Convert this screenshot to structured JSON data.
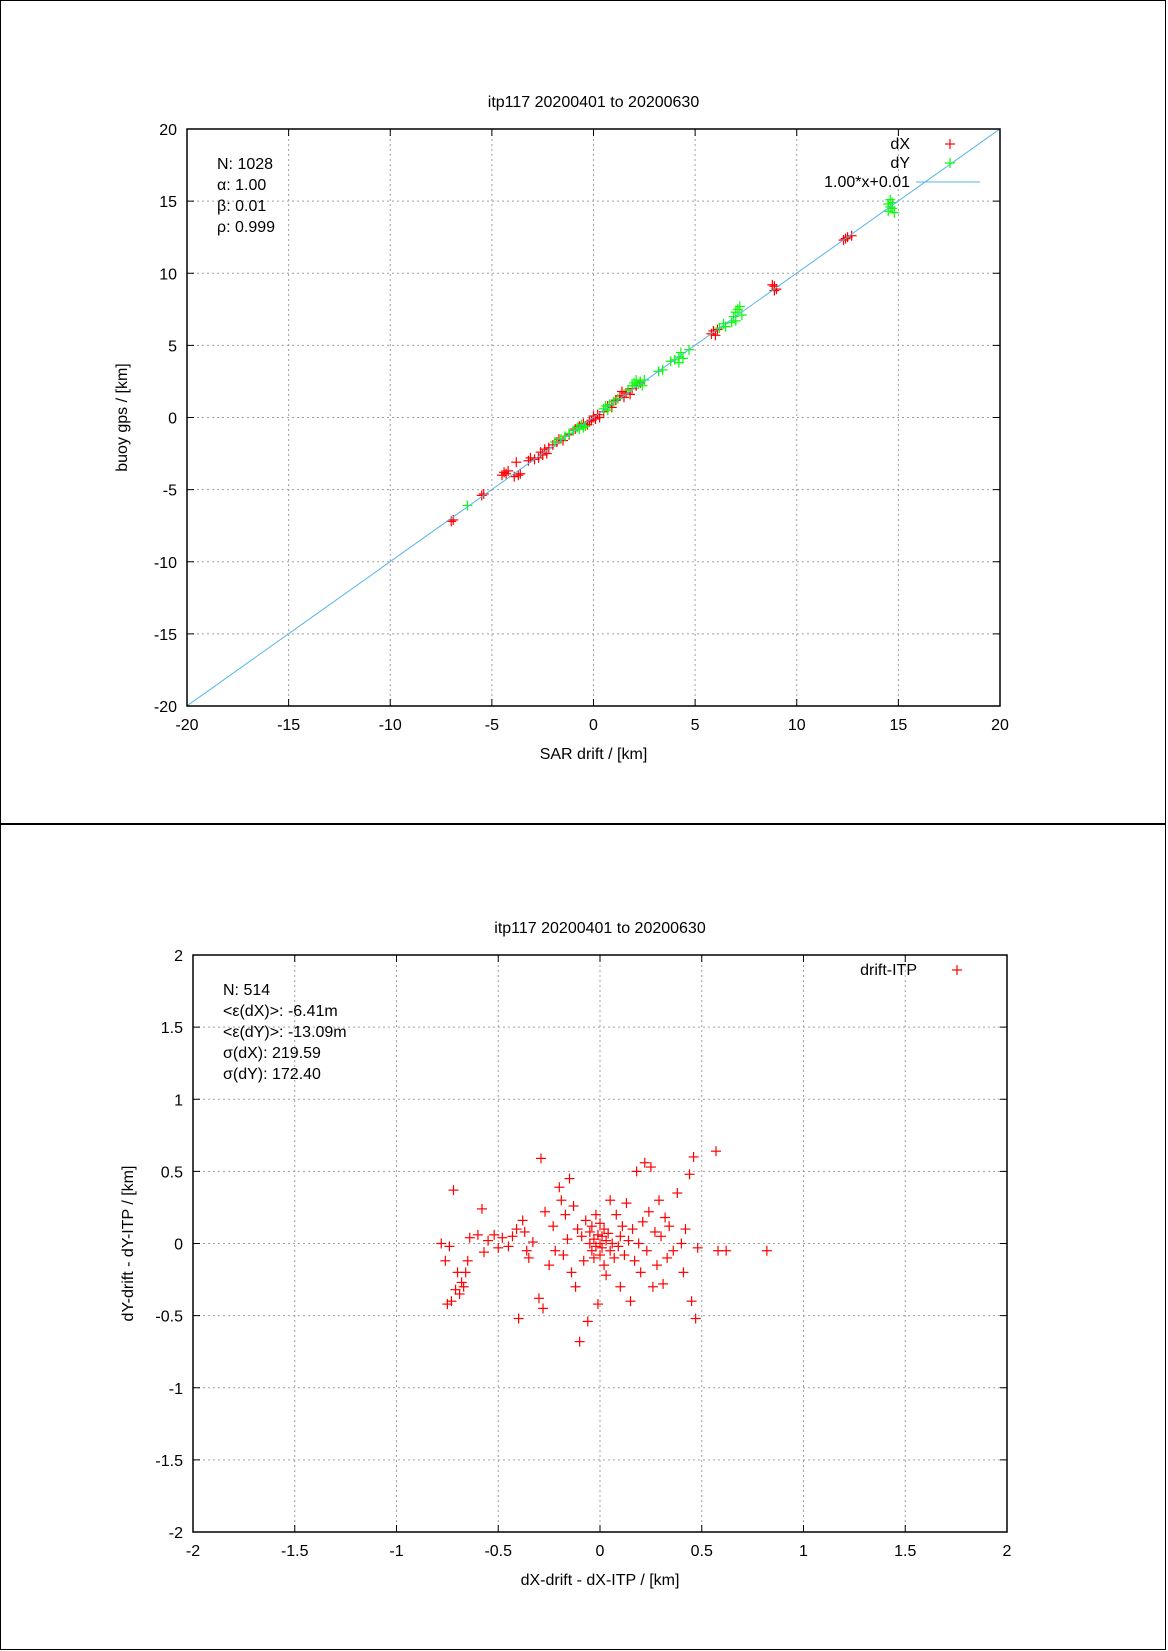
{
  "chart_data": [
    {
      "type": "scatter",
      "title": "itp117 20200401 to 20200630",
      "xlabel": "SAR drift / [km]",
      "ylabel": "buoy gps / [km]",
      "xlim": [
        -20,
        20
      ],
      "ylim": [
        -20,
        20
      ],
      "xticks": [
        "-20",
        "-15",
        "-10",
        "-5",
        "0",
        "5",
        "10",
        "15",
        "20"
      ],
      "yticks": [
        "-20",
        "-15",
        "-10",
        "-5",
        "0",
        "5",
        "10",
        "15",
        "20"
      ],
      "xtick_values": [
        -20,
        -15,
        -10,
        -5,
        0,
        5,
        10,
        15,
        20
      ],
      "ytick_values": [
        -20,
        -15,
        -10,
        -5,
        0,
        5,
        10,
        15,
        20
      ],
      "grid": true,
      "legend_position": "top-right",
      "stats": [
        "N: 1028",
        "α: 1.00",
        "β: 0.01",
        "ρ: 0.999"
      ],
      "series": [
        {
          "name": "dX",
          "marker": "plus",
          "color": "#ff0000",
          "points": [
            [
              -6.9,
              -7.1
            ],
            [
              -7.0,
              -7.2
            ],
            [
              -5.4,
              -5.3
            ],
            [
              -5.5,
              -5.4
            ],
            [
              -4.4,
              -3.8
            ],
            [
              -4.3,
              -3.9
            ],
            [
              -4.5,
              -4.0
            ],
            [
              -4.2,
              -3.7
            ],
            [
              -3.8,
              -3.1
            ],
            [
              -3.7,
              -4.0
            ],
            [
              -3.6,
              -3.9
            ],
            [
              -3.9,
              -4.1
            ],
            [
              -3.2,
              -3.0
            ],
            [
              -3.1,
              -2.8
            ],
            [
              -2.9,
              -2.9
            ],
            [
              -2.6,
              -2.4
            ],
            [
              -2.5,
              -2.6
            ],
            [
              -2.4,
              -2.2
            ],
            [
              -2.3,
              -2.5
            ],
            [
              -2.7,
              -2.8
            ],
            [
              -2.2,
              -2.1
            ],
            [
              -2.0,
              -1.9
            ],
            [
              -1.8,
              -1.7
            ],
            [
              -1.7,
              -1.5
            ],
            [
              -1.5,
              -1.6
            ],
            [
              -1.2,
              -1.2
            ],
            [
              -0.9,
              -0.8
            ],
            [
              -0.7,
              -0.6
            ],
            [
              -0.5,
              -0.4
            ],
            [
              -0.3,
              -0.5
            ],
            [
              -0.1,
              -0.2
            ],
            [
              0.0,
              0.1
            ],
            [
              0.1,
              -0.1
            ],
            [
              0.2,
              0.2
            ],
            [
              0.3,
              0.0
            ],
            [
              -0.2,
              -0.3
            ],
            [
              0.5,
              0.4
            ],
            [
              0.7,
              0.8
            ],
            [
              0.9,
              0.7
            ],
            [
              1.1,
              1.2
            ],
            [
              1.3,
              1.5
            ],
            [
              1.5,
              1.4
            ],
            [
              1.6,
              1.7
            ],
            [
              1.8,
              1.6
            ],
            [
              1.9,
              2.0
            ],
            [
              2.1,
              2.2
            ],
            [
              2.3,
              2.4
            ],
            [
              1.4,
              1.8
            ],
            [
              5.8,
              5.8
            ],
            [
              5.9,
              6.0
            ],
            [
              6.0,
              5.7
            ],
            [
              6.1,
              6.1
            ],
            [
              8.9,
              9.1
            ],
            [
              9.0,
              8.9
            ],
            [
              8.8,
              9.2
            ],
            [
              8.9,
              8.8
            ],
            [
              12.3,
              12.3
            ],
            [
              12.5,
              12.5
            ],
            [
              12.7,
              12.6
            ],
            [
              12.4,
              12.4
            ]
          ]
        },
        {
          "name": "dY",
          "marker": "plus",
          "color": "#00ff00",
          "points": [
            [
              -6.2,
              -6.1
            ],
            [
              -1.9,
              -1.7
            ],
            [
              -1.6,
              -1.5
            ],
            [
              -1.4,
              -1.3
            ],
            [
              -1.2,
              -1.1
            ],
            [
              -1.0,
              -0.9
            ],
            [
              -0.8,
              -0.7
            ],
            [
              -0.6,
              -0.5
            ],
            [
              -0.5,
              -0.7
            ],
            [
              -0.4,
              -0.6
            ],
            [
              -0.7,
              -0.8
            ],
            [
              0.5,
              0.6
            ],
            [
              0.6,
              0.8
            ],
            [
              0.7,
              0.5
            ],
            [
              0.8,
              0.9
            ],
            [
              1.0,
              1.1
            ],
            [
              1.2,
              1.3
            ],
            [
              1.7,
              1.9
            ],
            [
              1.9,
              2.2
            ],
            [
              2.0,
              2.4
            ],
            [
              2.1,
              2.6
            ],
            [
              2.2,
              2.3
            ],
            [
              2.3,
              2.5
            ],
            [
              2.5,
              2.6
            ],
            [
              2.4,
              2.2
            ],
            [
              3.2,
              3.2
            ],
            [
              3.4,
              3.3
            ],
            [
              3.8,
              3.9
            ],
            [
              4.0,
              4.0
            ],
            [
              4.2,
              4.2
            ],
            [
              4.3,
              4.5
            ],
            [
              4.4,
              4.1
            ],
            [
              4.2,
              3.8
            ],
            [
              4.7,
              4.7
            ],
            [
              6.2,
              6.2
            ],
            [
              6.4,
              6.5
            ],
            [
              6.5,
              6.3
            ],
            [
              6.9,
              7.0
            ],
            [
              7.0,
              7.3
            ],
            [
              7.1,
              7.5
            ],
            [
              7.2,
              7.7
            ],
            [
              7.0,
              6.7
            ],
            [
              7.3,
              7.1
            ],
            [
              6.8,
              6.6
            ],
            [
              14.5,
              14.3
            ],
            [
              14.6,
              14.6
            ],
            [
              14.7,
              14.9
            ],
            [
              14.6,
              15.1
            ],
            [
              14.5,
              14.8
            ],
            [
              14.7,
              14.5
            ],
            [
              14.8,
              14.2
            ]
          ]
        },
        {
          "name": "1.00*x+0.01",
          "marker": "line",
          "color": "#56b4e9",
          "slope": 1.0,
          "intercept": 0.01
        }
      ]
    },
    {
      "type": "scatter",
      "title": "itp117 20200401 to 20200630",
      "xlabel": "dX-drift - dX-ITP / [km]",
      "ylabel": "dY-drift - dY-ITP / [km]",
      "xlim": [
        -2,
        2
      ],
      "ylim": [
        -2,
        2
      ],
      "xticks": [
        "-2",
        "-1.5",
        "-1",
        "-0.5",
        "0",
        "0.5",
        "1",
        "1.5",
        "2"
      ],
      "yticks": [
        "-2",
        "-1.5",
        "-1",
        "-0.5",
        "0",
        "0.5",
        "1",
        "1.5",
        "2"
      ],
      "xtick_values": [
        -2,
        -1.5,
        -1,
        -0.5,
        0,
        0.5,
        1,
        1.5,
        2
      ],
      "ytick_values": [
        -2,
        -1.5,
        -1,
        -0.5,
        0,
        0.5,
        1,
        1.5,
        2
      ],
      "grid": true,
      "legend_position": "top-right",
      "stats": [
        "N: 514",
        "<ε(dX)>:  -6.41m",
        "<ε(dY)>: -13.09m",
        "σ(dX):  219.59",
        "σ(dY):  172.40"
      ],
      "series": [
        {
          "name": "drift-ITP",
          "marker": "plus",
          "color": "#ff0000",
          "points": [
            [
              -0.78,
              0.0
            ],
            [
              -0.76,
              -0.12
            ],
            [
              -0.74,
              -0.02
            ],
            [
              -0.75,
              -0.42
            ],
            [
              -0.73,
              -0.4
            ],
            [
              -0.72,
              0.37
            ],
            [
              -0.71,
              -0.32
            ],
            [
              -0.7,
              -0.2
            ],
            [
              -0.69,
              -0.35
            ],
            [
              -0.68,
              -0.27
            ],
            [
              -0.67,
              -0.3
            ],
            [
              -0.66,
              -0.2
            ],
            [
              -0.65,
              -0.12
            ],
            [
              -0.64,
              0.04
            ],
            [
              -0.6,
              0.06
            ],
            [
              -0.58,
              0.24
            ],
            [
              -0.57,
              -0.06
            ],
            [
              -0.55,
              0.02
            ],
            [
              -0.52,
              0.06
            ],
            [
              -0.5,
              -0.03
            ],
            [
              -0.48,
              0.04
            ],
            [
              -0.45,
              -0.02
            ],
            [
              -0.43,
              0.05
            ],
            [
              -0.41,
              0.1
            ],
            [
              -0.4,
              -0.52
            ],
            [
              -0.38,
              0.16
            ],
            [
              -0.37,
              0.08
            ],
            [
              -0.36,
              -0.05
            ],
            [
              -0.35,
              -0.1
            ],
            [
              -0.33,
              0.01
            ],
            [
              -0.3,
              -0.38
            ],
            [
              -0.29,
              0.59
            ],
            [
              -0.28,
              -0.45
            ],
            [
              -0.27,
              0.22
            ],
            [
              -0.25,
              -0.15
            ],
            [
              -0.23,
              0.12
            ],
            [
              -0.22,
              -0.05
            ],
            [
              -0.2,
              0.39
            ],
            [
              -0.19,
              0.3
            ],
            [
              -0.18,
              -0.08
            ],
            [
              -0.17,
              0.2
            ],
            [
              -0.16,
              0.03
            ],
            [
              -0.15,
              0.45
            ],
            [
              -0.14,
              -0.2
            ],
            [
              -0.13,
              0.26
            ],
            [
              -0.12,
              -0.3
            ],
            [
              -0.11,
              0.1
            ],
            [
              -0.1,
              -0.68
            ],
            [
              -0.09,
              0.05
            ],
            [
              -0.08,
              -0.12
            ],
            [
              -0.07,
              0.16
            ],
            [
              -0.06,
              -0.54
            ],
            [
              -0.05,
              0.0
            ],
            [
              -0.05,
              0.08
            ],
            [
              -0.04,
              -0.05
            ],
            [
              -0.04,
              0.12
            ],
            [
              -0.03,
              0.03
            ],
            [
              -0.03,
              -0.1
            ],
            [
              -0.02,
              0.2
            ],
            [
              -0.02,
              -0.02
            ],
            [
              -0.01,
              0.06
            ],
            [
              -0.01,
              -0.42
            ],
            [
              0.0,
              0.0
            ],
            [
              0.0,
              0.14
            ],
            [
              0.0,
              -0.08
            ],
            [
              0.01,
              0.05
            ],
            [
              0.01,
              -0.03
            ],
            [
              0.02,
              0.1
            ],
            [
              0.02,
              -0.15
            ],
            [
              0.03,
              0.02
            ],
            [
              0.03,
              -0.22
            ],
            [
              0.04,
              0.07
            ],
            [
              0.05,
              -0.05
            ],
            [
              0.05,
              0.3
            ],
            [
              0.06,
              0.0
            ],
            [
              0.07,
              -0.1
            ],
            [
              0.08,
              0.2
            ],
            [
              0.09,
              -0.02
            ],
            [
              0.1,
              0.05
            ],
            [
              0.1,
              -0.3
            ],
            [
              0.11,
              0.12
            ],
            [
              0.12,
              -0.08
            ],
            [
              0.13,
              0.28
            ],
            [
              0.14,
              0.02
            ],
            [
              0.15,
              -0.4
            ],
            [
              0.16,
              0.1
            ],
            [
              0.17,
              -0.12
            ],
            [
              0.18,
              0.5
            ],
            [
              0.19,
              0.0
            ],
            [
              0.2,
              -0.2
            ],
            [
              0.21,
              0.15
            ],
            [
              0.22,
              0.56
            ],
            [
              0.23,
              -0.05
            ],
            [
              0.24,
              0.22
            ],
            [
              0.25,
              0.53
            ],
            [
              0.26,
              -0.3
            ],
            [
              0.27,
              0.08
            ],
            [
              0.28,
              -0.15
            ],
            [
              0.29,
              0.3
            ],
            [
              0.3,
              0.05
            ],
            [
              0.31,
              -0.28
            ],
            [
              0.32,
              0.18
            ],
            [
              0.33,
              -0.1
            ],
            [
              0.34,
              0.12
            ],
            [
              0.36,
              -0.05
            ],
            [
              0.38,
              0.35
            ],
            [
              0.4,
              0.0
            ],
            [
              0.41,
              -0.2
            ],
            [
              0.42,
              0.1
            ],
            [
              0.44,
              0.48
            ],
            [
              0.45,
              -0.4
            ],
            [
              0.46,
              0.6
            ],
            [
              0.47,
              -0.52
            ],
            [
              0.48,
              -0.03
            ],
            [
              0.57,
              0.64
            ],
            [
              0.58,
              -0.05
            ],
            [
              0.62,
              -0.05
            ],
            [
              0.82,
              -0.05
            ]
          ]
        }
      ]
    }
  ]
}
